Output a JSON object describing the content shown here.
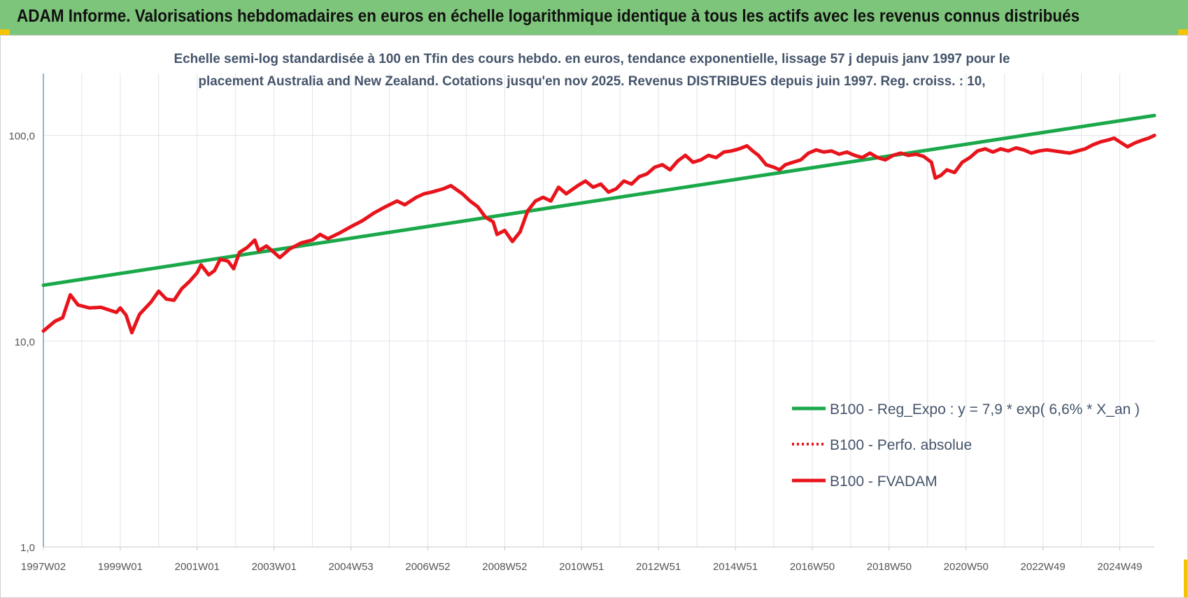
{
  "page": {
    "title": "ADAM Informe. Valorisations hebdomadaires en euros en échelle logarithmique identique à tous les actifs avec les revenus connus distribués"
  },
  "chart_data": {
    "type": "line",
    "title_lines": [
      "Echelle semi-log standardisée à 100 en Tfin des cours hebdo. en euros, tendance exponentielle, lissage 57 j depuis janv 1997 pour le",
      "placement Australia and New Zealand. Cotations jusqu'en nov 2025. Revenus DISTRIBUES depuis juin 1997. Reg. croiss. : 10,"
    ],
    "y_scale": "log",
    "ylim": [
      1,
      200
    ],
    "y_ticks": [
      {
        "value": 1,
        "label": "1,0"
      },
      {
        "value": 10,
        "label": "10,0"
      },
      {
        "value": 100,
        "label": "100,0"
      }
    ],
    "x_range": [
      1997.0,
      2025.9
    ],
    "x_ticks": [
      {
        "year": 1997.0,
        "label": "1997W02"
      },
      {
        "year": 1999.0,
        "label": "1999W01"
      },
      {
        "year": 2001.0,
        "label": "2001W01"
      },
      {
        "year": 2003.0,
        "label": "2003W01"
      },
      {
        "year": 2005.0,
        "label": "2004W53"
      },
      {
        "year": 2007.0,
        "label": "2006W52"
      },
      {
        "year": 2009.0,
        "label": "2008W52"
      },
      {
        "year": 2011.0,
        "label": "2010W51"
      },
      {
        "year": 2013.0,
        "label": "2012W51"
      },
      {
        "year": 2015.0,
        "label": "2014W51"
      },
      {
        "year": 2017.0,
        "label": "2016W50"
      },
      {
        "year": 2019.0,
        "label": "2018W50"
      },
      {
        "year": 2021.0,
        "label": "2020W50"
      },
      {
        "year": 2023.0,
        "label": "2022W49"
      },
      {
        "year": 2025.0,
        "label": "2024W49"
      }
    ],
    "grid": true,
    "legend_position": "bottom-right",
    "series": [
      {
        "name": "B100 - Reg_Expo : y = 7,9 * exp( 6,6% *  X_an )",
        "color": "#1aa84a",
        "style": "solid",
        "points": [
          [
            1997.0,
            18.7
          ],
          [
            2025.9,
            125.0
          ]
        ]
      },
      {
        "name": "B100 - Perfo. absolue",
        "color": "#e8141c",
        "style": "dotted",
        "points": []
      },
      {
        "name": "B100 - FVADAM",
        "color": "#e8141c",
        "style": "solid",
        "points": [
          [
            1997.0,
            11.2
          ],
          [
            1997.3,
            12.5
          ],
          [
            1997.5,
            13.0
          ],
          [
            1997.7,
            16.8
          ],
          [
            1997.9,
            15.0
          ],
          [
            1998.2,
            14.5
          ],
          [
            1998.5,
            14.6
          ],
          [
            1998.9,
            13.8
          ],
          [
            1999.0,
            14.5
          ],
          [
            1999.15,
            13.4
          ],
          [
            1999.3,
            11.0
          ],
          [
            1999.5,
            13.5
          ],
          [
            1999.8,
            15.5
          ],
          [
            2000.0,
            17.5
          ],
          [
            2000.2,
            16.0
          ],
          [
            2000.4,
            15.8
          ],
          [
            2000.6,
            18.0
          ],
          [
            2000.8,
            19.5
          ],
          [
            2001.0,
            21.5
          ],
          [
            2001.1,
            23.5
          ],
          [
            2001.3,
            21.0
          ],
          [
            2001.45,
            22.0
          ],
          [
            2001.6,
            25.0
          ],
          [
            2001.8,
            24.5
          ],
          [
            2001.95,
            22.5
          ],
          [
            2002.1,
            27.0
          ],
          [
            2002.3,
            28.5
          ],
          [
            2002.5,
            31.0
          ],
          [
            2002.6,
            27.5
          ],
          [
            2002.8,
            29.0
          ],
          [
            2003.0,
            27.0
          ],
          [
            2003.15,
            25.5
          ],
          [
            2003.4,
            28.0
          ],
          [
            2003.7,
            30.0
          ],
          [
            2004.0,
            31.0
          ],
          [
            2004.2,
            33.0
          ],
          [
            2004.4,
            31.5
          ],
          [
            2004.7,
            33.5
          ],
          [
            2005.0,
            36.0
          ],
          [
            2005.3,
            38.5
          ],
          [
            2005.6,
            42.0
          ],
          [
            2005.9,
            45.0
          ],
          [
            2006.2,
            48.0
          ],
          [
            2006.4,
            46.0
          ],
          [
            2006.7,
            50.0
          ],
          [
            2006.9,
            52.0
          ],
          [
            2007.1,
            53.0
          ],
          [
            2007.4,
            55.0
          ],
          [
            2007.6,
            57.0
          ],
          [
            2007.9,
            52.0
          ],
          [
            2008.1,
            48.0
          ],
          [
            2008.3,
            45.0
          ],
          [
            2008.5,
            40.0
          ],
          [
            2008.7,
            38.0
          ],
          [
            2008.8,
            33.0
          ],
          [
            2009.0,
            34.5
          ],
          [
            2009.2,
            30.5
          ],
          [
            2009.4,
            34.0
          ],
          [
            2009.6,
            43.0
          ],
          [
            2009.8,
            48.0
          ],
          [
            2010.0,
            50.0
          ],
          [
            2010.2,
            48.0
          ],
          [
            2010.4,
            56.0
          ],
          [
            2010.6,
            52.0
          ],
          [
            2010.9,
            57.0
          ],
          [
            2011.1,
            60.0
          ],
          [
            2011.3,
            56.0
          ],
          [
            2011.5,
            58.0
          ],
          [
            2011.7,
            53.0
          ],
          [
            2011.9,
            55.0
          ],
          [
            2012.1,
            60.0
          ],
          [
            2012.3,
            58.0
          ],
          [
            2012.5,
            63.0
          ],
          [
            2012.7,
            65.0
          ],
          [
            2012.9,
            70.0
          ],
          [
            2013.1,
            72.0
          ],
          [
            2013.3,
            68.0
          ],
          [
            2013.5,
            75.0
          ],
          [
            2013.7,
            80.0
          ],
          [
            2013.9,
            74.0
          ],
          [
            2014.1,
            76.0
          ],
          [
            2014.3,
            80.0
          ],
          [
            2014.5,
            78.0
          ],
          [
            2014.7,
            83.0
          ],
          [
            2014.9,
            84.0
          ],
          [
            2015.1,
            86.0
          ],
          [
            2015.3,
            89.0
          ],
          [
            2015.45,
            84.0
          ],
          [
            2015.6,
            80.0
          ],
          [
            2015.8,
            72.0
          ],
          [
            2016.0,
            70.0
          ],
          [
            2016.15,
            68.0
          ],
          [
            2016.3,
            72.0
          ],
          [
            2016.5,
            74.0
          ],
          [
            2016.7,
            76.0
          ],
          [
            2016.9,
            82.0
          ],
          [
            2017.1,
            85.0
          ],
          [
            2017.3,
            83.0
          ],
          [
            2017.5,
            84.0
          ],
          [
            2017.7,
            81.0
          ],
          [
            2017.9,
            83.0
          ],
          [
            2018.1,
            80.0
          ],
          [
            2018.3,
            78.0
          ],
          [
            2018.5,
            82.0
          ],
          [
            2018.7,
            78.0
          ],
          [
            2018.9,
            76.0
          ],
          [
            2019.1,
            80.0
          ],
          [
            2019.3,
            82.0
          ],
          [
            2019.5,
            80.0
          ],
          [
            2019.7,
            81.0
          ],
          [
            2019.9,
            79.0
          ],
          [
            2020.1,
            74.0
          ],
          [
            2020.2,
            62.0
          ],
          [
            2020.35,
            64.0
          ],
          [
            2020.5,
            68.0
          ],
          [
            2020.7,
            66.0
          ],
          [
            2020.9,
            74.0
          ],
          [
            2021.1,
            78.0
          ],
          [
            2021.3,
            84.0
          ],
          [
            2021.5,
            86.0
          ],
          [
            2021.7,
            83.0
          ],
          [
            2021.9,
            86.0
          ],
          [
            2022.1,
            84.0
          ],
          [
            2022.3,
            87.0
          ],
          [
            2022.5,
            85.0
          ],
          [
            2022.7,
            82.0
          ],
          [
            2022.9,
            84.0
          ],
          [
            2023.1,
            85.0
          ],
          [
            2023.3,
            84.0
          ],
          [
            2023.5,
            83.0
          ],
          [
            2023.7,
            82.0
          ],
          [
            2023.9,
            84.0
          ],
          [
            2024.1,
            86.0
          ],
          [
            2024.3,
            90.0
          ],
          [
            2024.5,
            93.0
          ],
          [
            2024.7,
            95.0
          ],
          [
            2024.85,
            97.0
          ],
          [
            2025.0,
            93.0
          ],
          [
            2025.2,
            88.0
          ],
          [
            2025.4,
            92.0
          ],
          [
            2025.6,
            95.0
          ],
          [
            2025.75,
            97.0
          ],
          [
            2025.9,
            100.0
          ]
        ]
      }
    ]
  }
}
